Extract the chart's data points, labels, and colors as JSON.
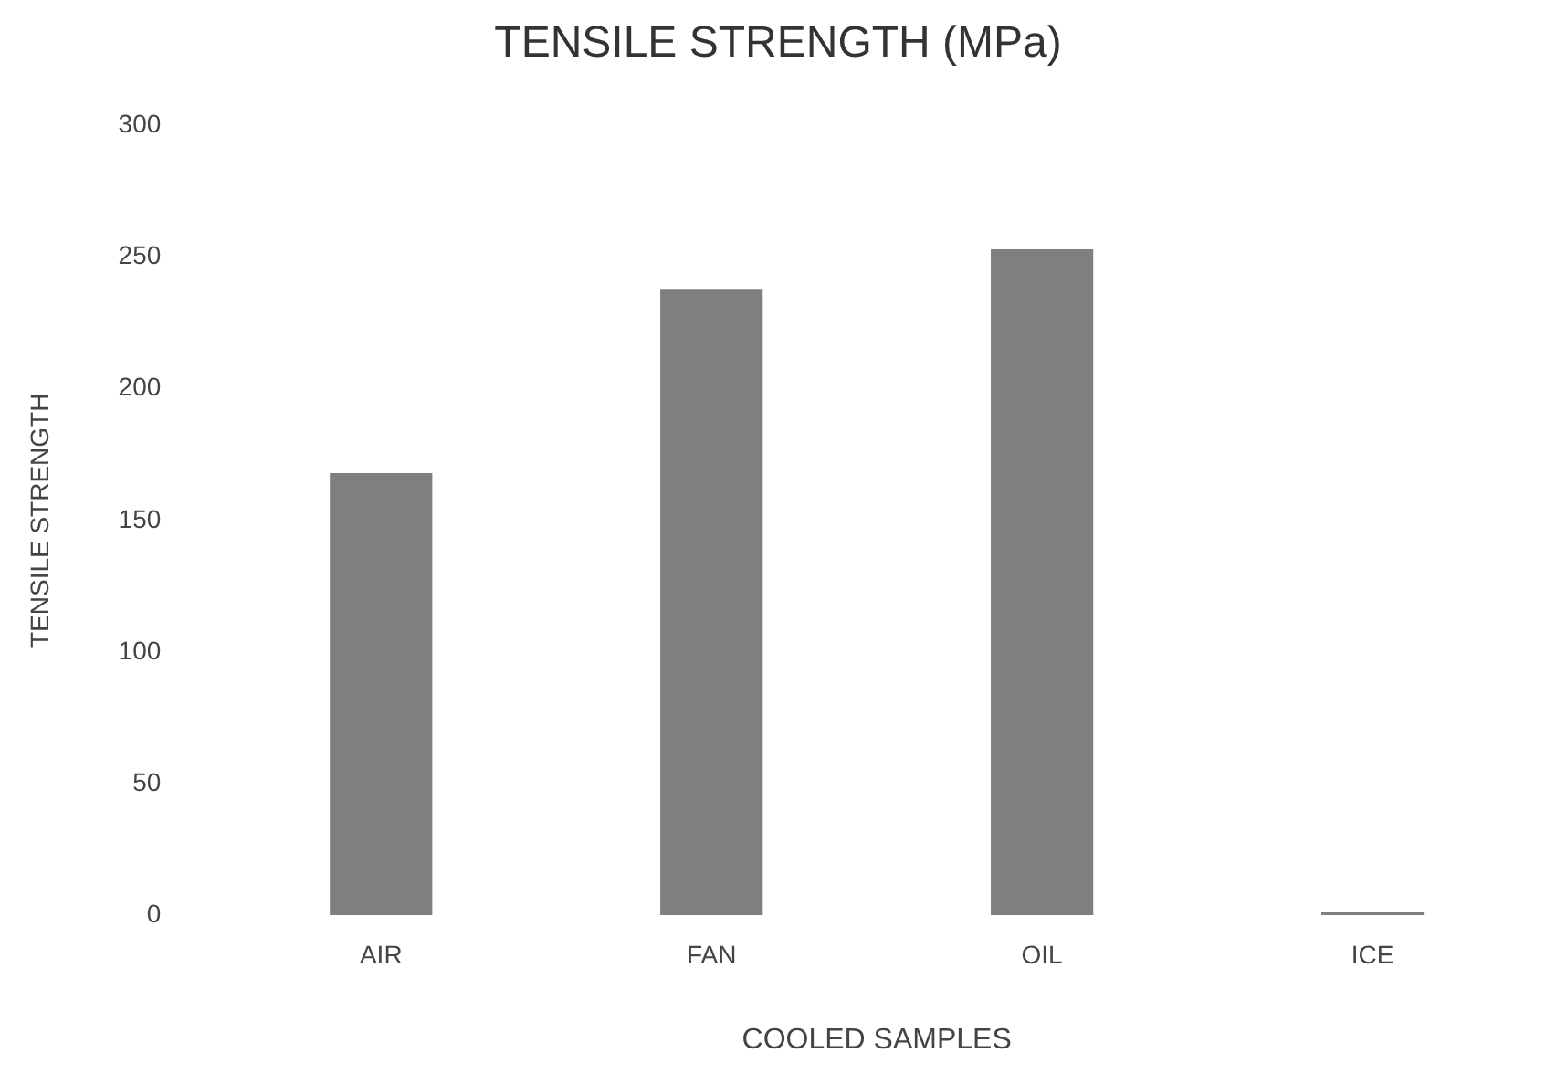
{
  "chart_data": {
    "type": "bar",
    "title": "TENSILE STRENGTH (MPa)",
    "xlabel": "COOLED SAMPLES",
    "ylabel": "TENSILE STRENGTH",
    "categories": [
      "AIR",
      "FAN",
      "OIL",
      "ICE"
    ],
    "values": [
      168,
      238,
      253,
      1
    ],
    "color": "#7f7f7f",
    "ylim": [
      0,
      300
    ],
    "yticks": [
      0,
      50,
      100,
      150,
      200,
      250,
      300
    ],
    "grid": false,
    "legend": false
  }
}
